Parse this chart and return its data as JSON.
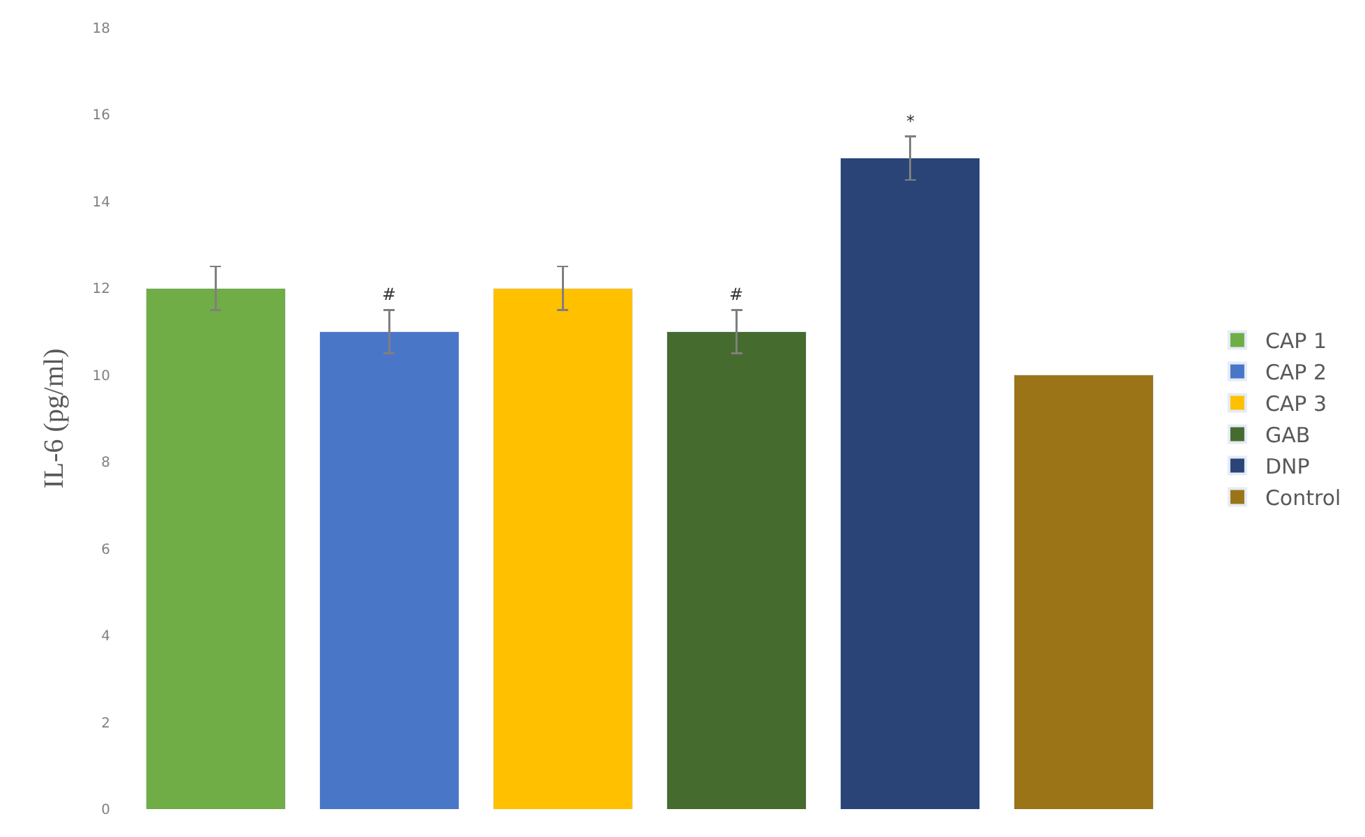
{
  "chart_data": {
    "type": "bar",
    "ylabel": "IL-6 (pg/ml)",
    "categories": [
      null,
      null,
      null,
      null,
      null,
      null
    ],
    "stacked": true,
    "series": [
      {
        "name": "CAP 1",
        "color": "#70ad47",
        "values": [
          12,
          null,
          null,
          null,
          null,
          null
        ],
        "errors": [
          0.5,
          null,
          null,
          null,
          null,
          null
        ]
      },
      {
        "name": "CAP 2",
        "color": "#4a76c8",
        "values": [
          null,
          11,
          null,
          null,
          null,
          null
        ],
        "errors": [
          null,
          0.5,
          null,
          null,
          null,
          null
        ],
        "value_labels": [
          null,
          "#",
          null,
          null,
          null,
          null
        ]
      },
      {
        "name": "CAP 3",
        "color": "#ffc000",
        "values": [
          null,
          null,
          12,
          null,
          null,
          null
        ],
        "errors": [
          null,
          null,
          0.5,
          null,
          null,
          null
        ]
      },
      {
        "name": "GAB",
        "color": "#466b2f",
        "values": [
          null,
          null,
          null,
          11,
          null,
          null
        ],
        "errors": [
          null,
          null,
          null,
          0.5,
          null,
          null
        ],
        "value_labels": [
          null,
          null,
          null,
          "#",
          null,
          null
        ]
      },
      {
        "name": "DNP",
        "color": "#2a4478",
        "values": [
          null,
          null,
          null,
          null,
          15,
          null
        ],
        "errors": [
          null,
          null,
          null,
          null,
          0.5,
          null
        ],
        "value_labels": [
          null,
          null,
          null,
          null,
          "*",
          null
        ]
      },
      {
        "name": "Control",
        "color": "#9c7418",
        "values": [
          null,
          null,
          null,
          null,
          null,
          10
        ]
      }
    ],
    "ylim": [
      0,
      18
    ],
    "yticks": [
      0,
      2,
      4,
      6,
      8,
      10,
      12,
      14,
      16,
      18
    ],
    "legend": "right"
  }
}
